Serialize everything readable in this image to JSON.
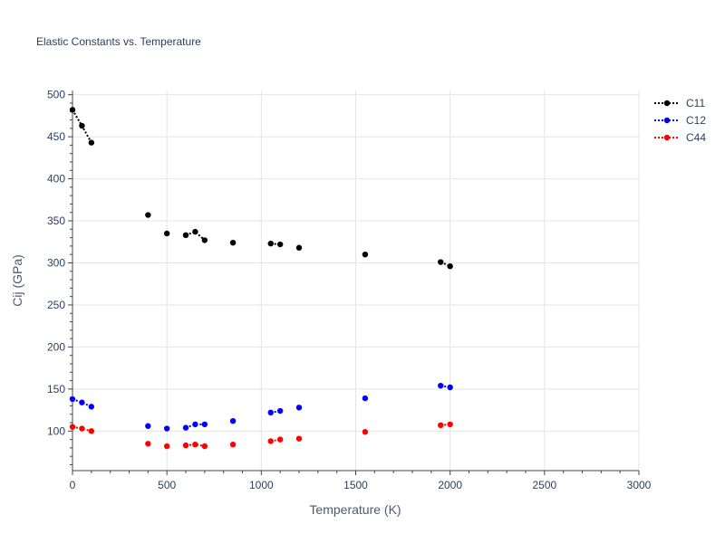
{
  "chart_data": {
    "type": "scatter",
    "title": "Elastic Constants vs. Temperature",
    "xlabel": "Temperature (K)",
    "ylabel": "Cij (GPa)",
    "xlim": [
      0,
      3000
    ],
    "ylim": [
      53,
      505
    ],
    "x_ticks": [
      0,
      500,
      1000,
      1500,
      2000,
      2500,
      3000
    ],
    "y_ticks": [
      100,
      150,
      200,
      250,
      300,
      350,
      400,
      450,
      500
    ],
    "grid": true,
    "legend_position": "top-right",
    "series": [
      {
        "name": "C11",
        "color": "#000000",
        "x": [
          0,
          50,
          100,
          400,
          500,
          600,
          650,
          700,
          850,
          1050,
          1100,
          1200,
          1550,
          1950,
          2000
        ],
        "y": [
          482,
          463,
          443,
          357,
          335,
          333,
          337,
          327,
          324,
          323,
          322,
          318,
          310,
          301,
          296
        ],
        "lines": [
          [
            0,
            1,
            2
          ],
          [
            5,
            6,
            7
          ],
          [
            9,
            10
          ],
          [
            13,
            14
          ]
        ]
      },
      {
        "name": "C12",
        "color": "#0000ff",
        "x": [
          0,
          50,
          100,
          400,
          500,
          600,
          650,
          700,
          850,
          1050,
          1100,
          1200,
          1550,
          1950,
          2000
        ],
        "y": [
          138,
          134,
          129,
          106,
          103,
          104,
          108,
          108,
          112,
          122,
          124,
          128,
          139,
          154,
          152
        ],
        "lines": [
          [
            0,
            1,
            2
          ],
          [
            5,
            6,
            7
          ],
          [
            9,
            10
          ],
          [
            13,
            14
          ]
        ]
      },
      {
        "name": "C44",
        "color": "#ff0000",
        "x": [
          0,
          50,
          100,
          400,
          500,
          600,
          650,
          700,
          850,
          1050,
          1100,
          1200,
          1550,
          1950,
          2000
        ],
        "y": [
          105,
          103,
          100,
          85,
          82,
          83,
          84,
          82,
          84,
          88,
          90,
          91,
          99,
          107,
          108
        ],
        "lines": [
          [
            0,
            1,
            2
          ],
          [
            5,
            6,
            7
          ],
          [
            9,
            10
          ],
          [
            13,
            14
          ]
        ]
      }
    ]
  }
}
